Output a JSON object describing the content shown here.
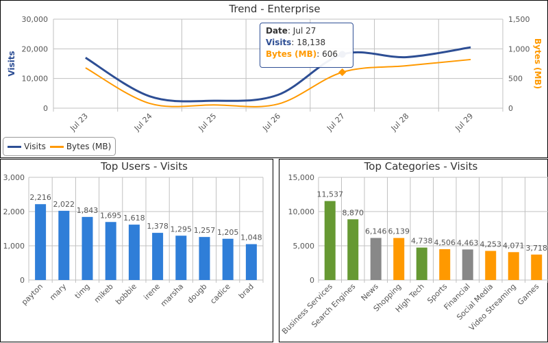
{
  "colors": {
    "visits": "#2d4e94",
    "bytes": "#ff9900",
    "bar": "#2f7ed8",
    "green": "#669933",
    "gray": "#888888",
    "orange": "#ff9900"
  },
  "chart_data": [
    {
      "type": "line",
      "title": "Trend - Enterprise",
      "x": [
        "Jul 23",
        "Jul 24",
        "Jul 25",
        "Jul 26",
        "Jul 27",
        "Jul 28",
        "Jul 29"
      ],
      "ylabel": "Visits",
      "ylim": [
        0,
        30000
      ],
      "yticks": [
        "0",
        "10,000",
        "20,000",
        "30,000"
      ],
      "y2label": "Bytes (MB)",
      "y2lim": [
        0,
        1500
      ],
      "y2ticks": [
        "0",
        "500",
        "1,000",
        "1,500"
      ],
      "series": [
        {
          "name": "Visits",
          "axis": "left",
          "values": [
            17000,
            4000,
            2500,
            4500,
            18138,
            17200,
            20500
          ]
        },
        {
          "name": "Bytes (MB)",
          "axis": "right",
          "values": [
            680,
            80,
            55,
            70,
            606,
            715,
            820
          ]
        }
      ],
      "legend": "bottom-left",
      "grid": true,
      "tooltip": {
        "date_label": "Date",
        "date": "Jul 27",
        "visits_label": "Visits",
        "visits": "18,138",
        "bytes_label": "Bytes (MB)",
        "bytes": "606"
      }
    },
    {
      "type": "bar",
      "title": "Top Users - Visits",
      "categories": [
        "payton",
        "mary",
        "timg",
        "mikeb",
        "bobbie",
        "irene",
        "marsha",
        "dougb",
        "cadice",
        "brad"
      ],
      "values": [
        2216,
        2022,
        1843,
        1695,
        1618,
        1378,
        1295,
        1257,
        1205,
        1048
      ],
      "labels": [
        "2,216",
        "2,022",
        "1,843",
        "1,695",
        "1,618",
        "1,378",
        "1,295",
        "1,257",
        "1,205",
        "1,048"
      ],
      "ylim": [
        0,
        3000
      ],
      "yticks": [
        "0",
        "1,000",
        "2,000",
        "3,000"
      ],
      "grid": true
    },
    {
      "type": "bar",
      "title": "Top Categories - Visits",
      "categories": [
        "Business Services",
        "Search Engines",
        "News",
        "Shopping",
        "High Tech",
        "Sports",
        "Financial",
        "Social Media",
        "Video Streaming",
        "Games"
      ],
      "values": [
        11537,
        8870,
        6146,
        6139,
        4738,
        4506,
        4463,
        4253,
        4071,
        3718
      ],
      "labels": [
        "11,537",
        "8,870",
        "6,146",
        "6,139",
        "4,738",
        "4,506",
        "4,463",
        "4,253",
        "4,071",
        "3,718"
      ],
      "bar_colors": [
        "green",
        "green",
        "gray",
        "orange",
        "green",
        "orange",
        "gray",
        "orange",
        "orange",
        "orange"
      ],
      "ylim": [
        0,
        15000
      ],
      "yticks": [
        "0",
        "5,000",
        "10,000",
        "15,000"
      ],
      "grid": true
    }
  ]
}
